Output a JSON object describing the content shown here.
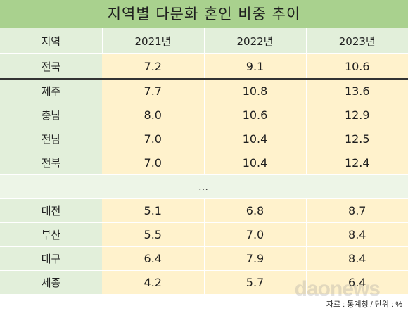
{
  "title": "지역별 다문화 혼인 비중 추이",
  "source_note": "자료 : 통계청 / 단위 : %",
  "watermark": "daonews",
  "colors": {
    "title_bg": "#a9d18e",
    "region_bg": "#e2efda",
    "value_bg": "#fff2cc"
  },
  "chart_data": {
    "type": "table",
    "title": "지역별 다문화 혼인 비중 추이",
    "columns": [
      "지역",
      "2021년",
      "2022년",
      "2023년"
    ],
    "national": {
      "region": "전국",
      "values": [
        "7.2",
        "9.1",
        "10.6"
      ]
    },
    "top_rows": [
      {
        "region": "제주",
        "values": [
          "7.7",
          "10.8",
          "13.6"
        ]
      },
      {
        "region": "충남",
        "values": [
          "8.0",
          "10.6",
          "12.9"
        ]
      },
      {
        "region": "전남",
        "values": [
          "7.0",
          "10.4",
          "12.5"
        ]
      },
      {
        "region": "전북",
        "values": [
          "7.0",
          "10.4",
          "12.4"
        ]
      }
    ],
    "ellipsis": "…",
    "bottom_rows": [
      {
        "region": "대전",
        "values": [
          "5.1",
          "6.8",
          "8.7"
        ]
      },
      {
        "region": "부산",
        "values": [
          "5.5",
          "7.0",
          "8.4"
        ]
      },
      {
        "region": "대구",
        "values": [
          "6.4",
          "7.9",
          "8.4"
        ]
      },
      {
        "region": "세종",
        "values": [
          "4.2",
          "5.7",
          "6.4"
        ]
      }
    ],
    "unit": "%"
  }
}
